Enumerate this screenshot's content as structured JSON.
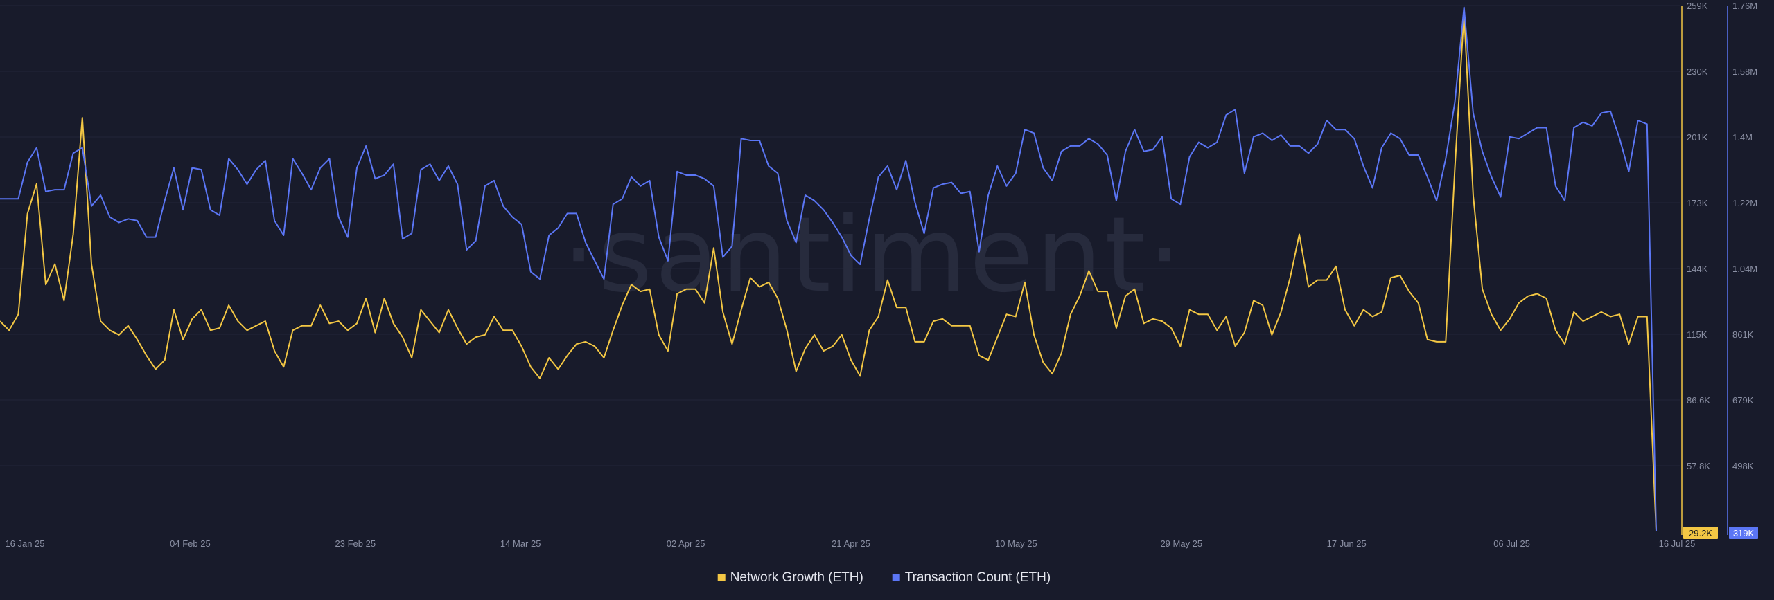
{
  "watermark": "·santiment·",
  "chart_data": {
    "type": "line",
    "x_ticks": [
      "16 Jan 25",
      "04 Feb 25",
      "23 Feb 25",
      "14 Mar 25",
      "02 Apr 25",
      "21 Apr 25",
      "10 May 25",
      "29 May 25",
      "17 Jun 25",
      "06 Jul 25",
      "16 Jul 25"
    ],
    "y_axis_left": {
      "ticks": [
        "259K",
        "230K",
        "201K",
        "173K",
        "144K",
        "115K",
        "86.6K",
        "57.8K"
      ],
      "current_value_label": "29.2K",
      "color": "#f3c744"
    },
    "y_axis_right": {
      "ticks": [
        "1.76M",
        "1.58M",
        "1.4M",
        "1.22M",
        "1.04M",
        "861K",
        "679K",
        "498K"
      ],
      "current_value_label": "319K",
      "color": "#5b76f5"
    },
    "grid": true,
    "legend_position": "bottom-center",
    "series": [
      {
        "name": "Network Growth (ETH)",
        "color": "#f3c744",
        "axis": "left",
        "values": [
          121000,
          117000,
          124000,
          168000,
          181000,
          137000,
          146000,
          130000,
          159000,
          210000,
          146000,
          121000,
          117000,
          115000,
          119000,
          113000,
          106000,
          100000,
          104000,
          126000,
          113000,
          122000,
          126000,
          117000,
          118000,
          128000,
          121000,
          117000,
          119000,
          121000,
          108000,
          101000,
          117000,
          119000,
          119000,
          128000,
          120000,
          121000,
          117000,
          120000,
          131000,
          116000,
          131000,
          120000,
          114000,
          105000,
          126000,
          121000,
          116000,
          126000,
          118000,
          111000,
          114000,
          115000,
          123000,
          117000,
          117000,
          110000,
          101000,
          96000,
          105000,
          100000,
          106000,
          111000,
          112000,
          110000,
          105000,
          117000,
          128000,
          137000,
          134000,
          135000,
          115000,
          108000,
          133000,
          135000,
          135000,
          129000,
          153000,
          125000,
          111000,
          126000,
          140000,
          136000,
          138000,
          131000,
          117000,
          99000,
          109000,
          115000,
          108000,
          110000,
          115000,
          104000,
          97000,
          117000,
          123000,
          139000,
          127000,
          127000,
          112000,
          112000,
          121000,
          122000,
          119000,
          119000,
          119000,
          106000,
          104000,
          114000,
          124000,
          123000,
          138000,
          115000,
          103000,
          98000,
          107000,
          124000,
          132000,
          143000,
          134000,
          134000,
          118000,
          132000,
          135000,
          120000,
          122000,
          121000,
          118000,
          110000,
          126000,
          124000,
          124000,
          117000,
          123000,
          110000,
          116000,
          130000,
          128000,
          115000,
          125000,
          140000,
          159000,
          136000,
          139000,
          139000,
          145000,
          126000,
          119000,
          126000,
          123000,
          125000,
          140000,
          141000,
          134000,
          129000,
          113000,
          112000,
          112000,
          188000,
          256000,
          176000,
          135000,
          124000,
          117000,
          122000,
          129000,
          132000,
          133000,
          131000,
          117000,
          111000,
          125000,
          121000,
          123000,
          125000,
          123000,
          124000,
          111000,
          123000,
          123000,
          29200
        ]
      },
      {
        "name": "Transaction Count (ETH)",
        "color": "#5b76f5",
        "axis": "right",
        "values": [
          1230000,
          1230000,
          1230000,
          1330000,
          1370000,
          1250000,
          1255000,
          1255000,
          1355000,
          1370000,
          1210000,
          1240000,
          1180000,
          1165000,
          1175000,
          1170000,
          1125000,
          1125000,
          1225000,
          1315000,
          1200000,
          1315000,
          1310000,
          1200000,
          1185000,
          1340000,
          1310000,
          1270000,
          1310000,
          1335000,
          1170000,
          1130000,
          1340000,
          1300000,
          1255000,
          1315000,
          1340000,
          1180000,
          1125000,
          1315000,
          1375000,
          1285000,
          1295000,
          1325000,
          1120000,
          1135000,
          1310000,
          1325000,
          1280000,
          1320000,
          1270000,
          1090000,
          1115000,
          1265000,
          1280000,
          1210000,
          1180000,
          1160000,
          1030000,
          1010000,
          1130000,
          1150000,
          1190000,
          1190000,
          1110000,
          1060000,
          1010000,
          1215000,
          1230000,
          1290000,
          1265000,
          1280000,
          1125000,
          1060000,
          1305000,
          1295000,
          1295000,
          1285000,
          1265000,
          1070000,
          1100000,
          1395000,
          1390000,
          1390000,
          1320000,
          1300000,
          1170000,
          1110000,
          1240000,
          1225000,
          1200000,
          1165000,
          1125000,
          1075000,
          1050000,
          1175000,
          1290000,
          1320000,
          1255000,
          1335000,
          1220000,
          1135000,
          1260000,
          1270000,
          1275000,
          1245000,
          1250000,
          1085000,
          1240000,
          1320000,
          1265000,
          1300000,
          1420000,
          1410000,
          1315000,
          1280000,
          1360000,
          1375000,
          1375000,
          1395000,
          1380000,
          1350000,
          1225000,
          1360000,
          1420000,
          1360000,
          1365000,
          1400000,
          1230000,
          1215000,
          1345000,
          1385000,
          1370000,
          1385000,
          1460000,
          1475000,
          1300000,
          1400000,
          1410000,
          1390000,
          1405000,
          1375000,
          1375000,
          1355000,
          1380000,
          1445000,
          1420000,
          1420000,
          1395000,
          1320000,
          1260000,
          1370000,
          1410000,
          1395000,
          1350000,
          1350000,
          1290000,
          1225000,
          1340000,
          1495000,
          1755000,
          1465000,
          1360000,
          1290000,
          1235000,
          1400000,
          1395000,
          1410000,
          1425000,
          1425000,
          1265000,
          1225000,
          1425000,
          1440000,
          1430000,
          1465000,
          1470000,
          1395000,
          1305000,
          1445000,
          1435000,
          319000
        ]
      }
    ]
  }
}
